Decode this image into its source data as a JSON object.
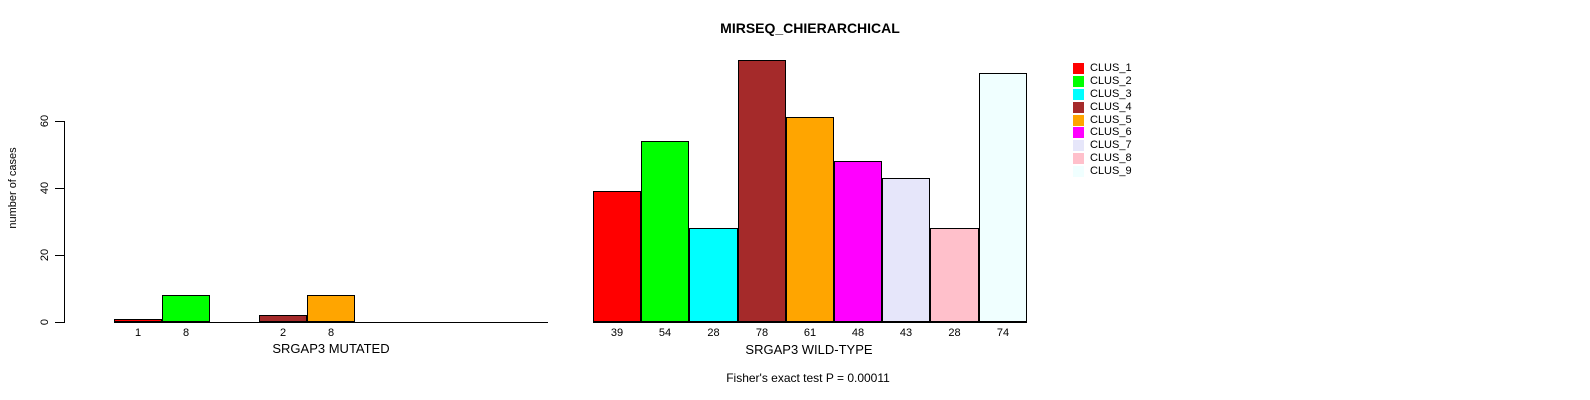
{
  "chart_data": [
    {
      "type": "bar",
      "panel": "left",
      "xlabel": "SRGAP3 MUTATED",
      "ylabel": "number of cases",
      "ylim": [
        0,
        60
      ],
      "yticks": [
        0,
        20,
        40,
        60
      ],
      "grid": false,
      "categories": [
        "CLUS_1",
        "CLUS_2",
        "CLUS_3",
        "CLUS_4",
        "CLUS_5",
        "CLUS_6",
        "CLUS_7",
        "CLUS_8",
        "CLUS_9"
      ],
      "values": [
        1,
        8,
        0,
        2,
        8,
        0,
        0,
        0,
        0
      ],
      "bar_labels": [
        "1",
        "8",
        "",
        "2",
        "8",
        "",
        "",
        "",
        ""
      ],
      "bar_colors": [
        "#FF0000",
        "#00FF00",
        "#00FFFF",
        "#A52A2A",
        "#FFA500",
        "#FF00FF",
        "#E6E6FA",
        "#FFC0CB",
        "#F0FFFF"
      ]
    },
    {
      "type": "bar",
      "panel": "right",
      "title": "MIRSEQ_CHIERARCHICAL",
      "xlabel": "SRGAP3 WILD-TYPE",
      "annotation": "Fisher's exact test P = 0.00011",
      "ylim": [
        0,
        60
      ],
      "yticks": [
        0,
        20,
        40,
        60
      ],
      "grid": false,
      "categories": [
        "CLUS_1",
        "CLUS_2",
        "CLUS_3",
        "CLUS_4",
        "CLUS_5",
        "CLUS_6",
        "CLUS_7",
        "CLUS_8",
        "CLUS_9"
      ],
      "values": [
        39,
        54,
        28,
        78,
        61,
        48,
        43,
        28,
        74
      ],
      "bar_labels": [
        "39",
        "54",
        "28",
        "78",
        "61",
        "48",
        "43",
        "28",
        "74"
      ],
      "bar_colors": [
        "#FF0000",
        "#00FF00",
        "#00FFFF",
        "#A52A2A",
        "#FFA500",
        "#FF00FF",
        "#E6E6FA",
        "#FFC0CB",
        "#F0FFFF"
      ]
    }
  ],
  "legend": {
    "position": "right",
    "entries": [
      {
        "label": "CLUS_1",
        "color": "#FF0000"
      },
      {
        "label": "CLUS_2",
        "color": "#00FF00"
      },
      {
        "label": "CLUS_3",
        "color": "#00FFFF"
      },
      {
        "label": "CLUS_4",
        "color": "#A52A2A"
      },
      {
        "label": "CLUS_5",
        "color": "#FFA500"
      },
      {
        "label": "CLUS_6",
        "color": "#FF00FF"
      },
      {
        "label": "CLUS_7",
        "color": "#E6E6FA"
      },
      {
        "label": "CLUS_8",
        "color": "#FFC0CB"
      },
      {
        "label": "CLUS_9",
        "color": "#F0FFFF"
      }
    ]
  }
}
